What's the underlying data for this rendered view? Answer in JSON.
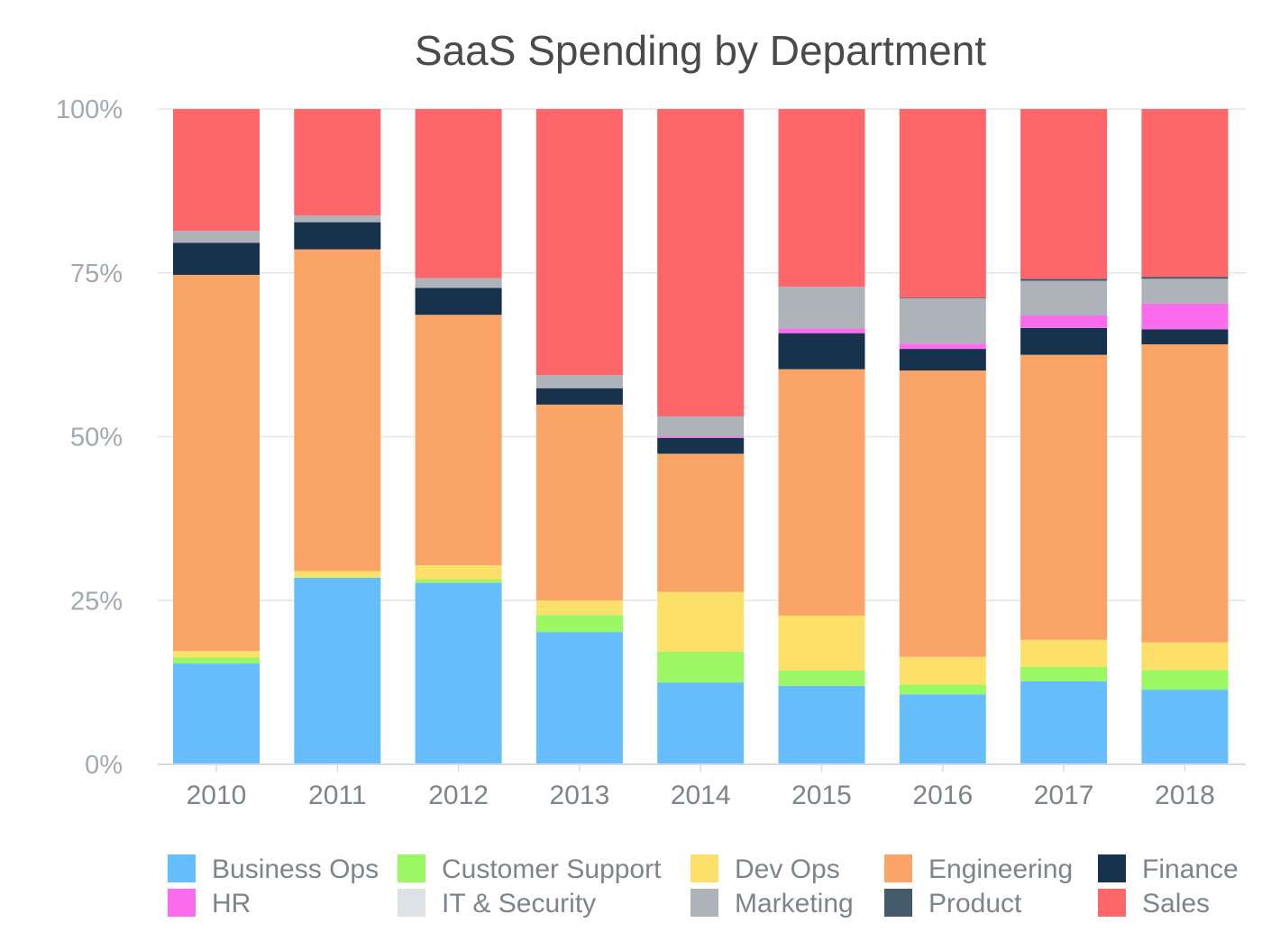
{
  "chart_data": {
    "type": "bar",
    "stacked": true,
    "normalized": true,
    "title": "SaaS Spending by Department",
    "xlabel": "",
    "ylabel": "",
    "ylim": [
      0,
      100
    ],
    "y_ticks": [
      "0%",
      "25%",
      "50%",
      "75%",
      "100%"
    ],
    "y_tick_values": [
      0,
      25,
      50,
      75,
      100
    ],
    "grid": true,
    "legend_position": "bottom",
    "categories": [
      "2010",
      "2011",
      "2012",
      "2013",
      "2014",
      "2015",
      "2016",
      "2017",
      "2018"
    ],
    "series": [
      {
        "name": "Business Ops",
        "color": "#66bffc",
        "values": [
          15.4,
          28.2,
          27.7,
          20.2,
          12.5,
          12.0,
          10.7,
          12.7,
          11.4
        ]
      },
      {
        "name": "Customer Support",
        "color": "#9cf764",
        "values": [
          0.9,
          0.0,
          0.5,
          2.6,
          4.7,
          2.3,
          1.5,
          2.2,
          3.0
        ]
      },
      {
        "name": "Dev Ops",
        "color": "#fce06a",
        "values": [
          1.0,
          1.0,
          2.2,
          2.2,
          9.1,
          8.4,
          4.2,
          4.1,
          4.2
        ]
      },
      {
        "name": "Engineering",
        "color": "#fba468",
        "values": [
          57.4,
          48.6,
          38.2,
          29.9,
          21.1,
          37.6,
          43.7,
          43.5,
          45.5
        ]
      },
      {
        "name": "Finance",
        "color": "#17324d",
        "values": [
          4.9,
          4.1,
          4.1,
          2.5,
          2.4,
          5.5,
          3.3,
          4.1,
          2.3
        ]
      },
      {
        "name": "HR",
        "color": "#fb6cec",
        "values": [
          0.0,
          0.0,
          0.0,
          0.0,
          0.2,
          0.7,
          0.8,
          1.9,
          3.9
        ]
      },
      {
        "name": "IT & Security",
        "color": "#dde2e7",
        "values": [
          0.0,
          0.0,
          0.0,
          0.0,
          0.0,
          0.0,
          0.0,
          0.0,
          0.0
        ]
      },
      {
        "name": "Marketing",
        "color": "#adb3b9",
        "values": [
          1.8,
          1.0,
          1.5,
          2.0,
          3.1,
          6.4,
          6.9,
          5.3,
          3.8
        ]
      },
      {
        "name": "Product",
        "color": "#445a6b",
        "values": [
          0.0,
          0.0,
          0.0,
          0.0,
          0.0,
          0.0,
          0.1,
          0.3,
          0.3
        ]
      },
      {
        "name": "Sales",
        "color": "#fe6669",
        "values": [
          18.6,
          16.1,
          25.8,
          40.6,
          46.9,
          27.1,
          28.8,
          25.9,
          25.6
        ]
      }
    ]
  }
}
